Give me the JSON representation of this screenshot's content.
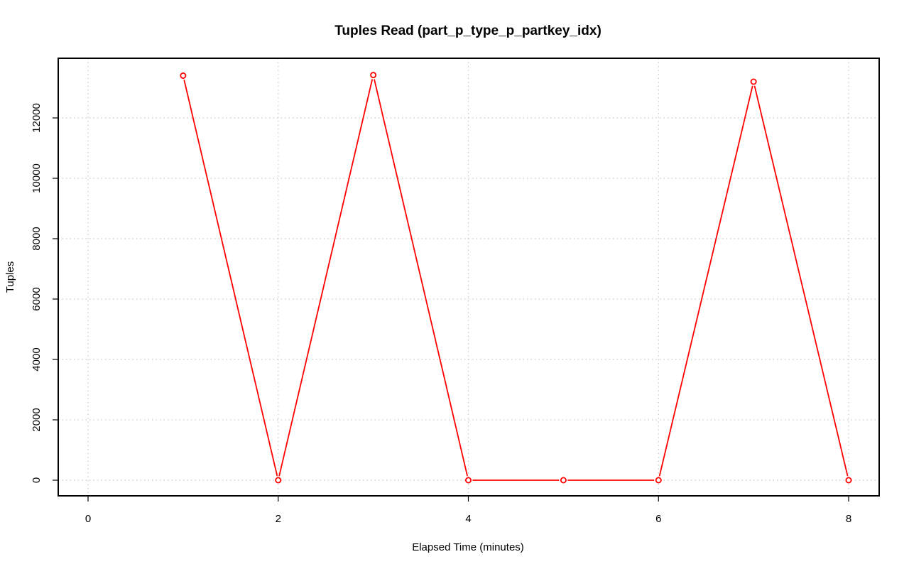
{
  "chart_data": {
    "type": "line",
    "title": "Tuples Read (part_p_type_p_partkey_idx)",
    "xlabel": "Elapsed Time (minutes)",
    "ylabel": "Tuples",
    "x": [
      1,
      2,
      3,
      4,
      5,
      6,
      7,
      8
    ],
    "series": [
      {
        "name": "Tuples Read",
        "color": "#ff0000",
        "marker": "open-circle",
        "values": [
          13400,
          0,
          13420,
          0,
          0,
          0,
          13200,
          0
        ]
      }
    ],
    "xticks": [
      0,
      2,
      4,
      6,
      8
    ],
    "yticks": [
      0,
      2000,
      4000,
      6000,
      8000,
      10000,
      12000
    ],
    "xlim": [
      -0.16,
      8.47
    ],
    "ylim": [
      -520,
      14000
    ],
    "grid": true,
    "grid_style": "dotted",
    "grid_color": "#c8c8c8",
    "legend": "none"
  }
}
